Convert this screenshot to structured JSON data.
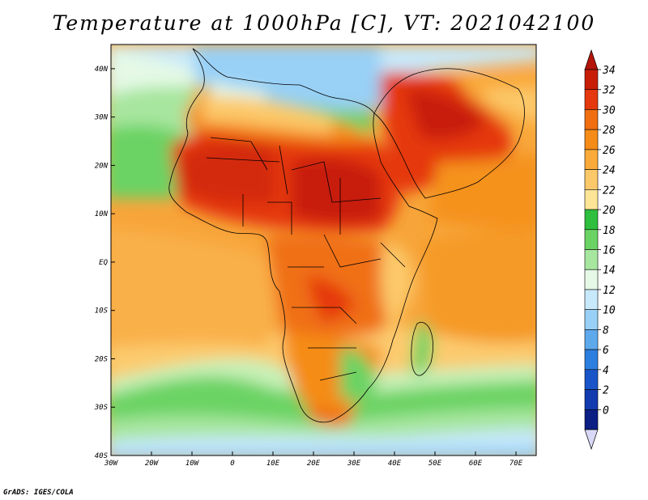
{
  "title": "Temperature at 1000hPa [C], VT: 2021042100",
  "credit": "GrADS: IGES/COLA",
  "map": {
    "lon_ticks": [
      "30W",
      "20W",
      "10W",
      "0",
      "10E",
      "20E",
      "30E",
      "40E",
      "50E",
      "60E",
      "70E"
    ],
    "lat_ticks": [
      "40N",
      "30N",
      "20N",
      "10N",
      "EQ",
      "10S",
      "20S",
      "30S",
      "40S"
    ],
    "lon_range": [
      -30,
      75
    ],
    "lat_range": [
      -40,
      45
    ]
  },
  "colorbar": {
    "labels": [
      "34",
      "32",
      "30",
      "28",
      "26",
      "24",
      "22",
      "20",
      "18",
      "16",
      "14",
      "12",
      "10",
      "8",
      "6",
      "4",
      "2",
      "0"
    ],
    "colors_top_to_bottom": [
      "#c81e08",
      "#e5380f",
      "#f06e10",
      "#f58c18",
      "#f9aa3a",
      "#fcc96a",
      "#fde597",
      "#2fbf3e",
      "#6bd364",
      "#a7e69f",
      "#e5f9e6",
      "#c8e9fb",
      "#98d0f6",
      "#5ea9ec",
      "#2d7fdf",
      "#1955c8",
      "#123bb0",
      "#0b1f84"
    ],
    "top_arrow_color": "#b4140a",
    "bottom_arrow_color": "#d9d9f7"
  }
}
